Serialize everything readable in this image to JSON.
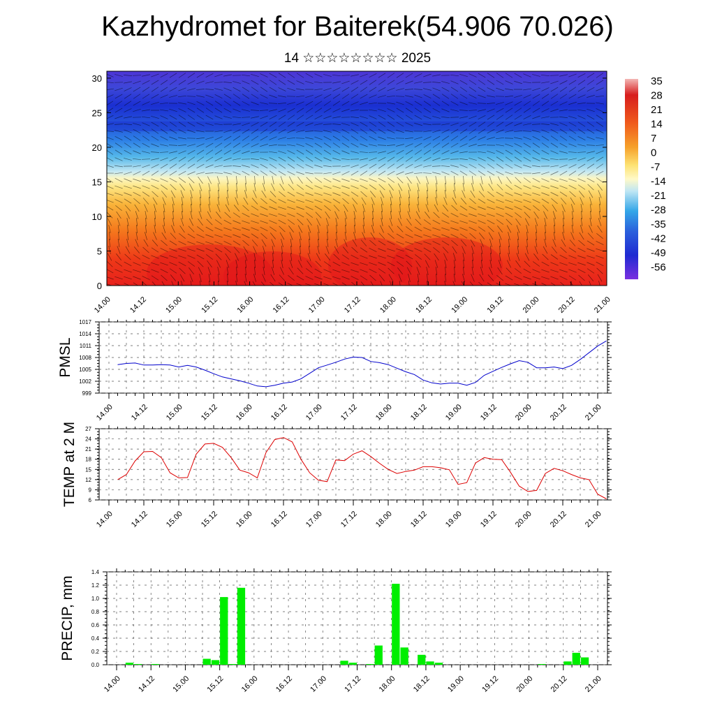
{
  "title": "Kazhydromet for Baiterek(54.906 70.026)",
  "subtitle": "14 ☆☆☆☆☆☆☆☆ 2025",
  "time_ticks": [
    "14.00",
    "14.12",
    "15.00",
    "15.12",
    "16.00",
    "16.12",
    "17.00",
    "17.12",
    "18.00",
    "18.12",
    "19.00",
    "19.12",
    "20.00",
    "20.12",
    "21.00"
  ],
  "colors": {
    "pmsl_line": "#0000cc",
    "temp_line": "#dd0000",
    "precip_bar": "#00ee00",
    "precip_bar_edge": "#000000"
  },
  "chart_data": [
    {
      "type": "heatmap",
      "panel": "upper-air",
      "y_ticks": [
        "0",
        "5",
        "10",
        "15",
        "20",
        "25",
        "30"
      ],
      "ylim": [
        0,
        31
      ],
      "x": [
        "14.00",
        "14.12",
        "15.00",
        "15.12",
        "16.00",
        "16.12",
        "17.00",
        "17.12",
        "18.00",
        "18.12",
        "19.00",
        "19.12",
        "20.00",
        "20.12",
        "21.00"
      ],
      "colorbar_labels": [
        "35",
        "28",
        "21",
        "14",
        "7",
        "0",
        "-7",
        "-14",
        "-21",
        "-28",
        "-35",
        "-42",
        "-49",
        "-56"
      ],
      "description_levels": "temperature shading with wind barbs"
    },
    {
      "type": "line",
      "panel": "pmsl",
      "ylabel": "PMSL",
      "y_ticks": [
        "1017",
        "1014",
        "1011",
        "1008",
        "1005",
        "1002",
        "999"
      ],
      "ylim": [
        999,
        1017
      ],
      "x": [
        "14.00",
        "14.03",
        "14.06",
        "14.09",
        "14.12",
        "14.15",
        "14.18",
        "14.21",
        "15.00",
        "15.03",
        "15.06",
        "15.09",
        "15.12",
        "15.15",
        "15.18",
        "15.21",
        "16.00",
        "16.03",
        "16.06",
        "16.09",
        "16.12",
        "16.15",
        "16.18",
        "16.21",
        "17.00",
        "17.03",
        "17.06",
        "17.09",
        "17.12",
        "17.15",
        "17.18",
        "17.21",
        "18.00",
        "18.03",
        "18.06",
        "18.09",
        "18.12",
        "18.15",
        "18.18",
        "18.21",
        "19.00",
        "19.03",
        "19.06",
        "19.09",
        "19.12",
        "19.15",
        "19.18",
        "19.21",
        "20.00",
        "20.03",
        "20.06",
        "20.09",
        "20.12",
        "20.15",
        "20.18",
        "20.21",
        "21.00"
      ],
      "series": [
        {
          "values": [
            1006.2,
            1006.5,
            1006.6,
            1006.1,
            1006.1,
            1006.2,
            1006.1,
            1005.6,
            1006.0,
            1005.6,
            1004.8,
            1003.9,
            1003.1,
            1002.6,
            1002.1,
            1001.5,
            1000.8,
            1000.6,
            1001.0,
            1001.5,
            1001.8,
            1002.6,
            1004.0,
            1005.4,
            1006.1,
            1006.8,
            1007.6,
            1008.1,
            1008.0,
            1007.0,
            1006.7,
            1006.2,
            1005.3,
            1004.4,
            1003.7,
            1002.3,
            1001.6,
            1001.3,
            1001.5,
            1001.5,
            1001.0,
            1001.7,
            1003.5,
            1004.5,
            1005.5,
            1006.4,
            1007.2,
            1006.8,
            1005.4,
            1005.4,
            1005.6,
            1005.2,
            1006.0,
            1007.5,
            1009.2,
            1010.9,
            1012.2
          ]
        }
      ]
    },
    {
      "type": "line",
      "panel": "temp2m",
      "ylabel": "TEMP at 2 M",
      "y_ticks": [
        "27",
        "24",
        "21",
        "18",
        "15",
        "12",
        "9",
        "6"
      ],
      "ylim": [
        6,
        27
      ],
      "x": [
        "14.00",
        "14.03",
        "14.06",
        "14.09",
        "14.12",
        "14.15",
        "14.18",
        "14.21",
        "15.00",
        "15.03",
        "15.06",
        "15.09",
        "15.12",
        "15.15",
        "15.18",
        "15.21",
        "16.00",
        "16.03",
        "16.06",
        "16.09",
        "16.12",
        "16.15",
        "16.18",
        "16.21",
        "17.00",
        "17.03",
        "17.06",
        "17.09",
        "17.12",
        "17.15",
        "17.18",
        "17.21",
        "18.00",
        "18.03",
        "18.06",
        "18.09",
        "18.12",
        "18.15",
        "18.18",
        "18.21",
        "19.00",
        "19.03",
        "19.06",
        "19.09",
        "19.12",
        "19.15",
        "19.18",
        "19.21",
        "20.00",
        "20.03",
        "20.06",
        "20.09",
        "20.12",
        "20.15",
        "20.18",
        "20.21",
        "21.00"
      ],
      "series": [
        {
          "values": [
            12.0,
            13.5,
            17.5,
            20.2,
            20.3,
            18.5,
            14.0,
            12.5,
            12.6,
            19.5,
            22.5,
            22.7,
            21.5,
            18.5,
            14.8,
            14.0,
            12.5,
            20.0,
            23.8,
            24.4,
            23.1,
            18.0,
            14.0,
            11.8,
            11.4,
            17.8,
            17.6,
            19.5,
            20.5,
            18.8,
            16.8,
            15.0,
            13.8,
            14.4,
            14.8,
            15.8,
            15.8,
            15.5,
            14.9,
            10.6,
            11.1,
            16.9,
            18.5,
            18.0,
            17.9,
            14.2,
            10.1,
            8.5,
            8.8,
            13.8,
            15.3,
            14.6,
            13.5,
            12.5,
            12.0,
            7.7,
            6.3
          ]
        }
      ]
    },
    {
      "type": "bar",
      "panel": "precip",
      "ylabel": "PRECIP, mm",
      "y_ticks": [
        "1.4",
        "1.2",
        "1.0",
        "0.8",
        "0.6",
        "0.4",
        "0.2",
        "0.0"
      ],
      "ylim": [
        0,
        1.4
      ],
      "x": [
        "14.00",
        "14.03",
        "14.06",
        "14.09",
        "14.12",
        "14.15",
        "14.18",
        "14.21",
        "15.00",
        "15.03",
        "15.06",
        "15.09",
        "15.12",
        "15.15",
        "15.18",
        "15.21",
        "16.00",
        "16.03",
        "16.06",
        "16.09",
        "16.12",
        "16.15",
        "16.18",
        "16.21",
        "17.00",
        "17.03",
        "17.06",
        "17.09",
        "17.12",
        "17.15",
        "17.18",
        "17.21",
        "18.00",
        "18.03",
        "18.06",
        "18.09",
        "18.12",
        "18.15",
        "18.18",
        "18.21",
        "19.00",
        "19.03",
        "19.06",
        "19.09",
        "19.12",
        "19.15",
        "19.18",
        "19.21",
        "20.00",
        "20.03",
        "20.06",
        "20.09",
        "20.12",
        "20.15",
        "20.18",
        "20.21",
        "21.00"
      ],
      "series": [
        {
          "values": [
            0.0,
            0.03,
            0.01,
            0.0,
            0.01,
            0.0,
            0.0,
            0.0,
            0.0,
            0.0,
            0.09,
            0.07,
            1.02,
            0.01,
            1.16,
            0.0,
            0.0,
            0.0,
            0.0,
            0.0,
            0.0,
            0.0,
            0.0,
            0.0,
            0.0,
            0.0,
            0.06,
            0.03,
            0.0,
            0.01,
            0.29,
            0.0,
            1.22,
            0.26,
            0.0,
            0.15,
            0.05,
            0.03,
            0.0,
            0.0,
            0.0,
            0.0,
            0.0,
            0.0,
            0.0,
            0.0,
            0.0,
            0.0,
            0.0,
            0.01,
            0.0,
            0.0,
            0.05,
            0.18,
            0.11,
            0.0,
            0.0
          ]
        }
      ]
    }
  ]
}
